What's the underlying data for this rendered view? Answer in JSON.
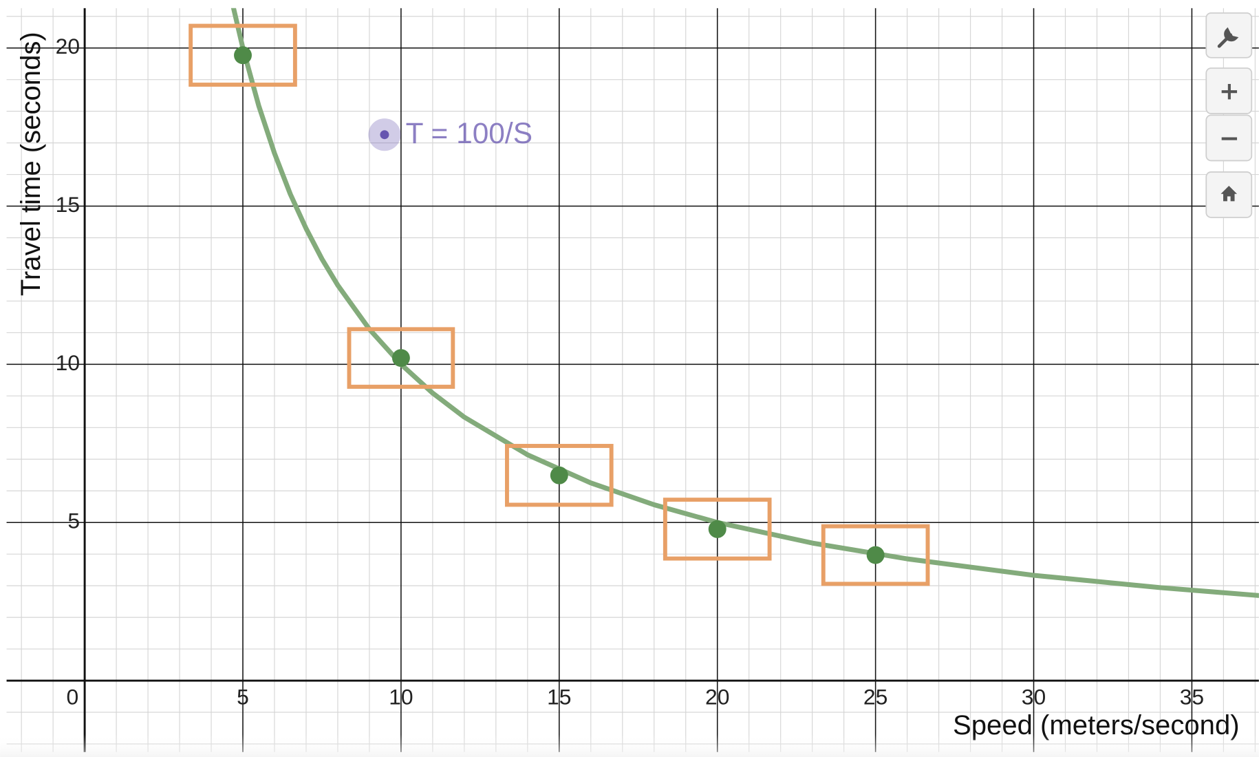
{
  "chart_data": {
    "type": "scatter",
    "x_label": "Speed (meters/second)",
    "y_label": "Travel time (seconds)",
    "xlim": [
      -2.47,
      37.12
    ],
    "ylim": [
      -2.26,
      21.26
    ],
    "xticks": [
      0,
      5,
      10,
      15,
      20,
      25,
      30,
      35
    ],
    "yticks": [
      5,
      10,
      15,
      20
    ],
    "grid": true,
    "minor_grid": true,
    "series": [
      {
        "type": "line",
        "name": "T = 100/S",
        "color": "#83ab7b",
        "label_color": "#6655b0",
        "x": [
          4.7,
          5,
          5.5,
          6,
          6.5,
          7,
          7.5,
          8,
          9,
          10,
          11,
          12,
          14,
          16,
          18,
          20,
          23,
          26,
          30,
          34,
          37.12
        ],
        "values": [
          21.28,
          20,
          18.18,
          16.67,
          15.38,
          14.29,
          13.33,
          12.5,
          11.11,
          10,
          9.09,
          8.33,
          7.14,
          6.25,
          5.56,
          5,
          4.35,
          3.85,
          3.33,
          2.94,
          2.69
        ]
      },
      {
        "type": "points",
        "color": "#4f8a48",
        "box_color": "#e8a067",
        "x": [
          5,
          10,
          15,
          20,
          25
        ],
        "values": [
          19.77,
          10.2,
          6.49,
          4.79,
          3.97
        ],
        "xerr": [
          1.65,
          1.64,
          1.65,
          1.65,
          1.65
        ],
        "yerr": [
          0.93,
          0.91,
          0.93,
          0.93,
          0.91
        ]
      }
    ]
  }
}
